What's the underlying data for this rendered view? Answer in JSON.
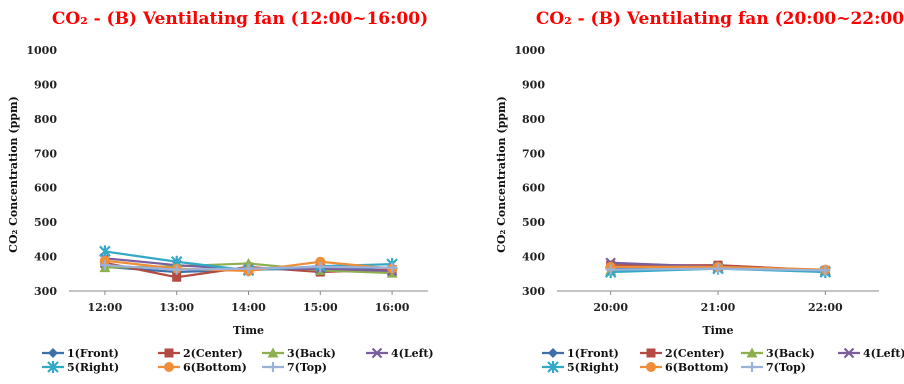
{
  "chart_data": [
    {
      "type": "line",
      "title": "CO₂ - (B) Ventilating fan (12:00~16:00)",
      "xlabel": "Time",
      "ylabel": "CO₂ Concentration (ppm)",
      "ylim": [
        300,
        1000
      ],
      "yticks": [
        300,
        400,
        500,
        600,
        700,
        800,
        900,
        1000
      ],
      "grid": false,
      "legend": "bottom",
      "categories": [
        "12:00",
        "13:00",
        "14:00",
        "15:00",
        "16:00"
      ],
      "series": [
        {
          "name": "1(Front)",
          "color": "#3F6FA8",
          "marker": "diamond",
          "values": [
            370,
            355,
            362,
            368,
            360
          ]
        },
        {
          "name": "2(Center)",
          "color": "#B44A42",
          "marker": "square",
          "values": [
            382,
            340,
            370,
            355,
            362
          ]
        },
        {
          "name": "3(Back)",
          "color": "#8DB04F",
          "marker": "triangle",
          "values": [
            368,
            372,
            380,
            360,
            352
          ]
        },
        {
          "name": "4(Left)",
          "color": "#7A5E9E",
          "marker": "x",
          "values": [
            395,
            375,
            362,
            365,
            358
          ]
        },
        {
          "name": "5(Right)",
          "color": "#33A8C7",
          "marker": "star",
          "values": [
            415,
            385,
            360,
            372,
            378
          ]
        },
        {
          "name": "6(Bottom)",
          "color": "#EE8E38",
          "marker": "circle",
          "values": [
            388,
            365,
            358,
            385,
            365
          ]
        },
        {
          "name": "7(Top)",
          "color": "#9AB2DA",
          "marker": "plus",
          "values": [
            375,
            362,
            365,
            370,
            368
          ]
        }
      ]
    },
    {
      "type": "line",
      "title": "CO₂ - (B) Ventilating fan (20:00~22:00)",
      "xlabel": "Time",
      "ylabel": "CO₂ Concentration (ppm)",
      "ylim": [
        300,
        1000
      ],
      "yticks": [
        300,
        400,
        500,
        600,
        700,
        800,
        900,
        1000
      ],
      "grid": false,
      "legend": "bottom",
      "categories": [
        "20:00",
        "21:00",
        "22:00"
      ],
      "series": [
        {
          "name": "1(Front)",
          "color": "#3F6FA8",
          "marker": "diamond",
          "values": [
            365,
            368,
            360
          ]
        },
        {
          "name": "2(Center)",
          "color": "#B44A42",
          "marker": "square",
          "values": [
            375,
            375,
            360
          ]
        },
        {
          "name": "3(Back)",
          "color": "#8DB04F",
          "marker": "triangle",
          "values": [
            360,
            370,
            360
          ]
        },
        {
          "name": "4(Left)",
          "color": "#7A5E9E",
          "marker": "x",
          "values": [
            382,
            370,
            358
          ]
        },
        {
          "name": "5(Right)",
          "color": "#33A8C7",
          "marker": "star",
          "values": [
            355,
            365,
            355
          ]
        },
        {
          "name": "6(Bottom)",
          "color": "#EE8E38",
          "marker": "circle",
          "values": [
            370,
            370,
            362
          ]
        },
        {
          "name": "7(Top)",
          "color": "#9AB2DA",
          "marker": "plus",
          "values": [
            362,
            365,
            360
          ]
        }
      ]
    }
  ]
}
